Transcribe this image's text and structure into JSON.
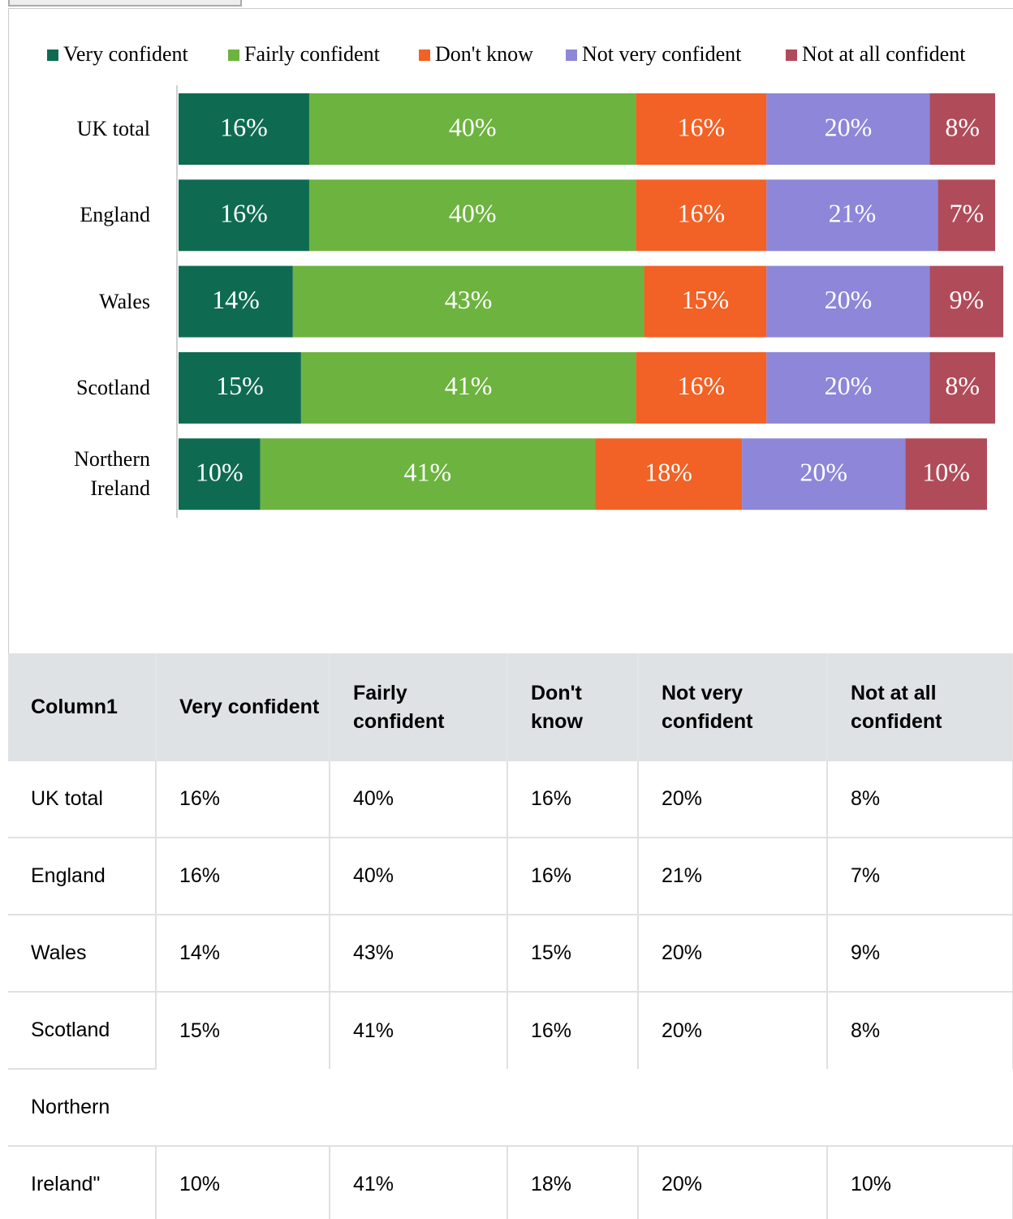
{
  "chart_data": {
    "type": "stacked-bar-horizontal",
    "categories": [
      "UK total",
      "England",
      "Wales",
      "Scotland",
      "Northern Ireland"
    ],
    "xlim": [
      0,
      100
    ],
    "legend": "top",
    "series": [
      {
        "name": "Very confident",
        "color": "#0e6b52",
        "values": [
          16,
          16,
          14,
          15,
          10
        ],
        "value_labels": [
          "16%",
          "16%",
          "14%",
          "15%",
          "10%"
        ]
      },
      {
        "name": "Fairly confident",
        "color": "#6db33f",
        "values": [
          40,
          40,
          43,
          41,
          41
        ],
        "value_labels": [
          "40%",
          "40%",
          "43%",
          "41%",
          "41%"
        ]
      },
      {
        "name": "Don't know",
        "color": "#f26125",
        "values": [
          16,
          16,
          15,
          16,
          18
        ],
        "value_labels": [
          "16%",
          "16%",
          "15%",
          "16%",
          "18%"
        ]
      },
      {
        "name": "Not very confident",
        "color": "#8d86d9",
        "values": [
          20,
          21,
          20,
          20,
          20
        ],
        "value_labels": [
          "20%",
          "21%",
          "20%",
          "20%",
          "20%"
        ]
      },
      {
        "name": "Not at all confident",
        "color": "#b04b5a",
        "values": [
          8,
          7,
          9,
          8,
          10
        ],
        "value_labels": [
          "8%",
          "7%",
          "9%",
          "8%",
          "10%"
        ]
      }
    ]
  },
  "table": {
    "header": [
      "Column1",
      "Very confident",
      "Fairly confident",
      "Don't know",
      "Not very confident",
      "Not at all confident"
    ],
    "rows": [
      [
        "UK total",
        "16%",
        "40%",
        "16%",
        "20%",
        "8%"
      ],
      [
        "England",
        "16%",
        "40%",
        "16%",
        "21%",
        "7%"
      ],
      [
        "Wales",
        "14%",
        "43%",
        "15%",
        "20%",
        "9%"
      ],
      [
        "Scotland",
        "15%",
        "41%",
        "16%",
        "20%",
        "8%"
      ],
      [
        "Northern"
      ],
      [
        "Ireland\"",
        "10%",
        "41%",
        "18%",
        "20%",
        "10%"
      ]
    ]
  }
}
